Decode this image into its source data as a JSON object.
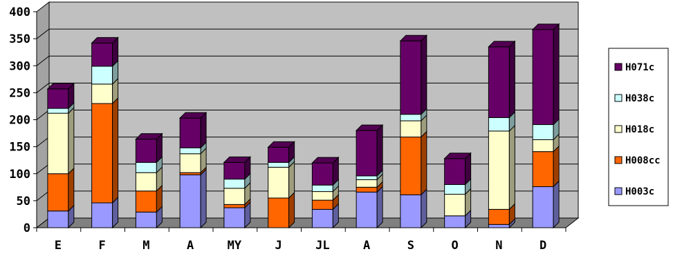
{
  "chart_data": {
    "type": "bar",
    "stacked": true,
    "three_d": true,
    "categories": [
      "E",
      "F",
      "M",
      "A",
      "MY",
      "J",
      "JL",
      "A",
      "S",
      "O",
      "N",
      "D"
    ],
    "series": [
      {
        "name": "H003c",
        "color": "#9999FF",
        "values": [
          31,
          46,
          29,
          98,
          37,
          0,
          34,
          66,
          61,
          22,
          6,
          76
        ]
      },
      {
        "name": "H008cc",
        "color": "#FF6600",
        "values": [
          69,
          184,
          39,
          4,
          6,
          55,
          17,
          9,
          107,
          0,
          28,
          65
        ]
      },
      {
        "name": "H018c",
        "color": "#FFFFCC",
        "values": [
          112,
          36,
          34,
          35,
          30,
          57,
          16,
          14,
          30,
          40,
          145,
          22
        ]
      },
      {
        "name": "H038c",
        "color": "#CCFFFF",
        "values": [
          9,
          33,
          19,
          11,
          17,
          9,
          12,
          7,
          12,
          18,
          25,
          28
        ]
      },
      {
        "name": "H071c",
        "color": "#660066",
        "values": [
          36,
          43,
          43,
          55,
          31,
          28,
          41,
          84,
          136,
          48,
          131,
          176
        ]
      }
    ],
    "y_ticks": [
      0,
      50,
      100,
      150,
      200,
      250,
      300,
      350,
      400
    ],
    "ylim": [
      0,
      400
    ],
    "grid": true,
    "legend_position": "right",
    "wall_color": "#C0C0C0",
    "floor_color": "#808080"
  }
}
